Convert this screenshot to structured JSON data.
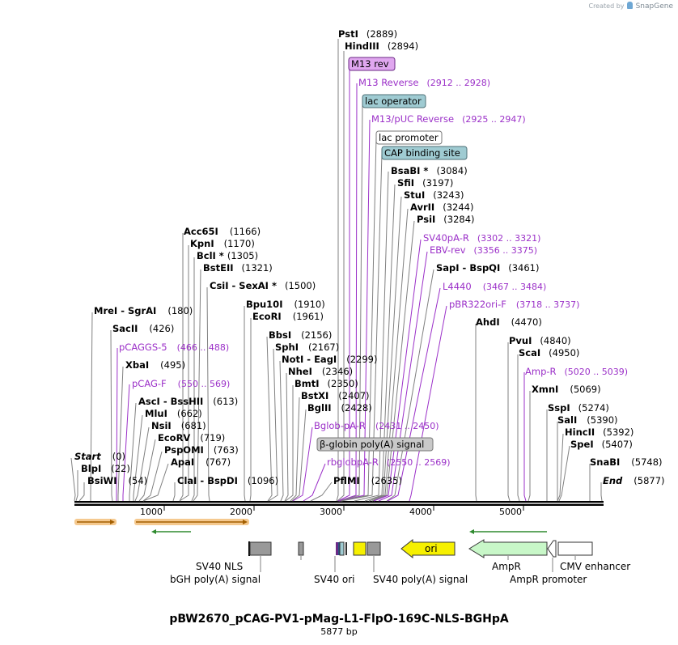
{
  "header": {
    "created_by": "Created by",
    "brand": "SnapGene"
  },
  "plasmid": {
    "name": "pBW2670_pCAG-PV1-pMag-L1-FlpO-169C-NLS-BGHpA",
    "length_label": "5877 bp"
  },
  "colors": {
    "enzyme": "#000000",
    "primer": "#9b30c8",
    "line": "#808080",
    "primer_line": "#9b30c8"
  },
  "ruler": {
    "ticks": [
      "1000",
      "2000",
      "3000",
      "4000",
      "5000"
    ]
  },
  "labels": {
    "top": [
      {
        "name": "PstI",
        "pos": "(2889)",
        "kind": "enzyme"
      },
      {
        "name": "HindIII",
        "pos": "(2894)",
        "kind": "enzyme"
      },
      {
        "name": "M13 rev",
        "kind": "box-purple"
      },
      {
        "name": "M13 Reverse",
        "pos": "(2912 .. 2928)",
        "kind": "primer"
      },
      {
        "name": "lac operator",
        "kind": "box-teal"
      },
      {
        "name": "M13/pUC Reverse",
        "pos": "(2925 .. 2947)",
        "kind": "primer"
      },
      {
        "name": "lac promoter",
        "kind": "box-white"
      },
      {
        "name": "CAP binding site",
        "kind": "box-teal"
      },
      {
        "name": "BsaBI *",
        "pos": "(3084)",
        "kind": "enzyme"
      },
      {
        "name": "SfiI",
        "pos": "(3197)",
        "kind": "enzyme"
      },
      {
        "name": "StuI",
        "pos": "(3243)",
        "kind": "enzyme"
      },
      {
        "name": "AvrII",
        "pos": "(3244)",
        "kind": "enzyme"
      },
      {
        "name": "PsiI",
        "pos": "(3284)",
        "kind": "enzyme"
      },
      {
        "name": "SV40pA-R",
        "pos": "(3302 .. 3321)",
        "kind": "primer"
      },
      {
        "name": "EBV-rev",
        "pos": "(3356 .. 3375)",
        "kind": "primer"
      },
      {
        "name": "SapI - BspQI",
        "pos": "(3461)",
        "kind": "enzyme"
      },
      {
        "name": "L4440",
        "pos": "(3467 .. 3484)",
        "kind": "primer"
      },
      {
        "name": "pBR322ori-F",
        "pos": "(3718 .. 3737)",
        "kind": "primer"
      },
      {
        "name": "AhdI",
        "pos": "(4470)",
        "kind": "enzyme"
      },
      {
        "name": "PvuI",
        "pos": "(4840)",
        "kind": "enzyme"
      },
      {
        "name": "ScaI",
        "pos": "(4950)",
        "kind": "enzyme"
      },
      {
        "name": "Amp-R",
        "pos": "(5020 .. 5039)",
        "kind": "primer"
      },
      {
        "name": "XmnI",
        "pos": "(5069)",
        "kind": "enzyme"
      },
      {
        "name": "SspI",
        "pos": "(5274)",
        "kind": "enzyme"
      },
      {
        "name": "SalI",
        "pos": "(5390)",
        "kind": "enzyme"
      },
      {
        "name": "HincII",
        "pos": "(5392)",
        "kind": "enzyme"
      },
      {
        "name": "SpeI",
        "pos": "(5407)",
        "kind": "enzyme"
      },
      {
        "name": "SnaBI",
        "pos": "(5748)",
        "kind": "enzyme"
      },
      {
        "name": "End",
        "pos": "(5877)",
        "kind": "end"
      }
    ],
    "left": [
      {
        "name": "Acc65I",
        "pos": "(1166)",
        "kind": "enzyme"
      },
      {
        "name": "KpnI",
        "pos": "(1170)",
        "kind": "enzyme"
      },
      {
        "name": "BclI *",
        "pos": "(1305)",
        "kind": "enzyme"
      },
      {
        "name": "BstEII",
        "pos": "(1321)",
        "kind": "enzyme"
      },
      {
        "name": "CsiI - SexAI *",
        "pos": "(1500)",
        "kind": "enzyme"
      },
      {
        "name": "MreI - SgrAI",
        "pos": "(180)",
        "kind": "enzyme"
      },
      {
        "name": "SacII",
        "pos": "(426)",
        "kind": "enzyme"
      },
      {
        "name": "pCAGGS-5",
        "pos": "(466 .. 488)",
        "kind": "primer"
      },
      {
        "name": "XbaI",
        "pos": "(495)",
        "kind": "enzyme"
      },
      {
        "name": "pCAG-F",
        "pos": "(550 .. 569)",
        "kind": "primer"
      },
      {
        "name": "AscI - BssHII",
        "pos": "(613)",
        "kind": "enzyme"
      },
      {
        "name": "MluI",
        "pos": "(662)",
        "kind": "enzyme"
      },
      {
        "name": "NsiI",
        "pos": "(681)",
        "kind": "enzyme"
      },
      {
        "name": "EcoRV",
        "pos": "(719)",
        "kind": "enzyme"
      },
      {
        "name": "PspOMI",
        "pos": "(763)",
        "kind": "enzyme"
      },
      {
        "name": "ApaI",
        "pos": "(767)",
        "kind": "enzyme"
      },
      {
        "name": "ClaI - BspDI",
        "pos": "(1096)",
        "kind": "enzyme"
      },
      {
        "name": "Start",
        "pos": "(0)",
        "kind": "end"
      },
      {
        "name": "BlpI",
        "pos": "(22)",
        "kind": "enzyme"
      },
      {
        "name": "BsiWI",
        "pos": "(54)",
        "kind": "enzyme"
      }
    ],
    "middle": [
      {
        "name": "Bpu10I",
        "pos": "(1910)",
        "kind": "enzyme"
      },
      {
        "name": "EcoRI",
        "pos": "(1961)",
        "kind": "enzyme"
      },
      {
        "name": "BbsI",
        "pos": "(2156)",
        "kind": "enzyme"
      },
      {
        "name": "SphI",
        "pos": "(2167)",
        "kind": "enzyme"
      },
      {
        "name": "NotI - EagI",
        "pos": "(2299)",
        "kind": "enzyme"
      },
      {
        "name": "NheI",
        "pos": "(2346)",
        "kind": "enzyme"
      },
      {
        "name": "BmtI",
        "pos": "(2350)",
        "kind": "enzyme"
      },
      {
        "name": "BstXI",
        "pos": "(2407)",
        "kind": "enzyme"
      },
      {
        "name": "BglII",
        "pos": "(2428)",
        "kind": "enzyme"
      },
      {
        "name": "Bglob-pA-R",
        "pos": "(2431 .. 2450)",
        "kind": "primer"
      },
      {
        "name": "β-globin poly(A) signal",
        "kind": "box-gray"
      },
      {
        "name": "rbglobpA-R",
        "pos": "(2550 .. 2569)",
        "kind": "primer"
      },
      {
        "name": "PflMI",
        "pos": "(2635)",
        "kind": "enzyme"
      }
    ]
  },
  "features_below": [
    "SV40 NLS",
    "bGH poly(A) signal",
    "SV40 ori",
    "SV40 poly(A) signal",
    "ori",
    "AmpR",
    "AmpR promoter",
    "CMV enhancer"
  ]
}
